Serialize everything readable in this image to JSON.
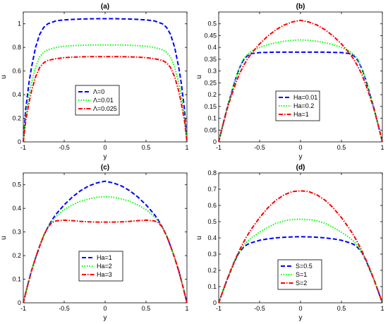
{
  "colors": {
    "blue": "#0000ff",
    "green": "#00ff00",
    "red": "#ff0000",
    "axis": "#000000"
  },
  "chart_data": [
    {
      "type": "line",
      "title": "(a)",
      "xlabel": "y",
      "ylabel": "u",
      "xlim": [
        -1,
        1
      ],
      "ylim": [
        0,
        1.1
      ],
      "xticks": [
        "-1",
        "-0.5",
        "0",
        "0.5",
        "1"
      ],
      "yticks": [
        "0",
        "0.2",
        "0.4",
        "0.6",
        "0.8",
        "1"
      ],
      "legend_position": "center",
      "series": [
        {
          "name": "Λ=0",
          "color": "blue",
          "dash": "dashed",
          "x": [
            -1,
            -0.97,
            -0.93,
            -0.9,
            -0.85,
            -0.8,
            -0.75,
            -0.7,
            -0.6,
            -0.5,
            -0.4,
            -0.3,
            -0.2,
            -0.1,
            0,
            0.1,
            0.2,
            0.3,
            0.4,
            0.5,
            0.6,
            0.7,
            0.75,
            0.8,
            0.85,
            0.9,
            0.93,
            0.97,
            1
          ],
          "y": [
            0,
            0.28,
            0.5,
            0.63,
            0.8,
            0.91,
            0.97,
            1.0,
            1.025,
            1.033,
            1.037,
            1.04,
            1.042,
            1.043,
            1.043,
            1.043,
            1.042,
            1.04,
            1.037,
            1.033,
            1.025,
            1.0,
            0.97,
            0.91,
            0.8,
            0.63,
            0.5,
            0.28,
            0
          ]
        },
        {
          "name": "Λ=0.01",
          "color": "green",
          "dash": "dotted",
          "x": [
            -1,
            -0.97,
            -0.93,
            -0.9,
            -0.85,
            -0.8,
            -0.75,
            -0.7,
            -0.6,
            -0.5,
            -0.4,
            -0.3,
            -0.2,
            -0.1,
            0,
            0.1,
            0.2,
            0.3,
            0.4,
            0.5,
            0.6,
            0.7,
            0.75,
            0.8,
            0.85,
            0.9,
            0.93,
            0.97,
            1
          ],
          "y": [
            0,
            0.22,
            0.4,
            0.5,
            0.63,
            0.72,
            0.76,
            0.78,
            0.8,
            0.81,
            0.815,
            0.818,
            0.82,
            0.82,
            0.82,
            0.82,
            0.82,
            0.818,
            0.815,
            0.81,
            0.8,
            0.78,
            0.76,
            0.72,
            0.63,
            0.5,
            0.4,
            0.22,
            0
          ]
        },
        {
          "name": "Λ=0.025",
          "color": "red",
          "dash": "dashdot",
          "x": [
            -1,
            -0.97,
            -0.93,
            -0.9,
            -0.85,
            -0.8,
            -0.75,
            -0.7,
            -0.6,
            -0.5,
            -0.4,
            -0.3,
            -0.2,
            -0.1,
            0,
            0.1,
            0.2,
            0.3,
            0.4,
            0.5,
            0.6,
            0.7,
            0.75,
            0.8,
            0.85,
            0.9,
            0.93,
            0.97,
            1
          ],
          "y": [
            0,
            0.18,
            0.33,
            0.43,
            0.55,
            0.63,
            0.67,
            0.69,
            0.705,
            0.713,
            0.718,
            0.72,
            0.722,
            0.722,
            0.722,
            0.722,
            0.722,
            0.72,
            0.718,
            0.713,
            0.705,
            0.69,
            0.67,
            0.63,
            0.55,
            0.43,
            0.33,
            0.18,
            0
          ]
        }
      ]
    },
    {
      "type": "line",
      "title": "(b)",
      "xlabel": "y",
      "ylabel": "u",
      "xlim": [
        -1,
        1
      ],
      "ylim": [
        0,
        0.55
      ],
      "xticks": [
        "-1",
        "-0.5",
        "0",
        "0.5",
        "1"
      ],
      "yticks": [
        "0",
        "0.05",
        "0.1",
        "0.15",
        "0.2",
        "0.25",
        "0.3",
        "0.35",
        "0.4",
        "0.45",
        "0.5"
      ],
      "legend_position": "bottom-center",
      "series": [
        {
          "name": "Ha=0.01",
          "color": "blue",
          "dash": "dashed",
          "x": [
            -1,
            -0.95,
            -0.9,
            -0.85,
            -0.8,
            -0.75,
            -0.7,
            -0.65,
            -0.6,
            -0.5,
            -0.4,
            -0.3,
            -0.2,
            -0.1,
            0,
            0.1,
            0.2,
            0.3,
            0.4,
            0.5,
            0.6,
            0.65,
            0.7,
            0.75,
            0.8,
            0.85,
            0.9,
            0.95,
            1
          ],
          "y": [
            0,
            0.07,
            0.14,
            0.2,
            0.26,
            0.31,
            0.345,
            0.365,
            0.374,
            0.378,
            0.379,
            0.38,
            0.38,
            0.38,
            0.38,
            0.38,
            0.38,
            0.38,
            0.379,
            0.378,
            0.374,
            0.365,
            0.345,
            0.31,
            0.26,
            0.2,
            0.14,
            0.07,
            0
          ]
        },
        {
          "name": "Ha=0.2",
          "color": "green",
          "dash": "dotted",
          "x": [
            -1,
            -0.95,
            -0.9,
            -0.85,
            -0.8,
            -0.75,
            -0.7,
            -0.65,
            -0.6,
            -0.5,
            -0.4,
            -0.3,
            -0.2,
            -0.1,
            0,
            0.1,
            0.2,
            0.3,
            0.4,
            0.5,
            0.6,
            0.65,
            0.7,
            0.75,
            0.8,
            0.85,
            0.9,
            0.95,
            1
          ],
          "y": [
            0,
            0.07,
            0.14,
            0.2,
            0.26,
            0.31,
            0.35,
            0.37,
            0.384,
            0.4,
            0.412,
            0.42,
            0.426,
            0.43,
            0.432,
            0.43,
            0.426,
            0.42,
            0.412,
            0.4,
            0.384,
            0.37,
            0.35,
            0.31,
            0.26,
            0.2,
            0.14,
            0.07,
            0
          ]
        },
        {
          "name": "Ha=1",
          "color": "red",
          "dash": "dashdot",
          "x": [
            -1,
            -0.95,
            -0.9,
            -0.85,
            -0.8,
            -0.75,
            -0.7,
            -0.65,
            -0.6,
            -0.5,
            -0.4,
            -0.3,
            -0.2,
            -0.1,
            0,
            0.1,
            0.2,
            0.3,
            0.4,
            0.5,
            0.6,
            0.65,
            0.7,
            0.75,
            0.8,
            0.85,
            0.9,
            0.95,
            1
          ],
          "y": [
            0,
            0.07,
            0.135,
            0.19,
            0.24,
            0.285,
            0.32,
            0.35,
            0.375,
            0.415,
            0.448,
            0.475,
            0.495,
            0.508,
            0.515,
            0.508,
            0.495,
            0.475,
            0.448,
            0.415,
            0.375,
            0.35,
            0.32,
            0.285,
            0.24,
            0.19,
            0.135,
            0.07,
            0
          ]
        }
      ]
    },
    {
      "type": "line",
      "title": "(c)",
      "xlabel": "y",
      "ylabel": "u",
      "xlim": [
        -1,
        1
      ],
      "ylim": [
        0,
        0.55
      ],
      "xticks": [
        "-1",
        "-0.5",
        "0",
        "0.5",
        "1"
      ],
      "yticks": [
        "0",
        "0.1",
        "0.2",
        "0.3",
        "0.4",
        "0.5"
      ],
      "legend_position": "bottom-center",
      "series": [
        {
          "name": "Ha=1",
          "color": "blue",
          "dash": "dashed",
          "x": [
            -1,
            -0.95,
            -0.9,
            -0.85,
            -0.8,
            -0.75,
            -0.7,
            -0.65,
            -0.6,
            -0.5,
            -0.4,
            -0.3,
            -0.2,
            -0.1,
            0,
            0.1,
            0.2,
            0.3,
            0.4,
            0.5,
            0.6,
            0.65,
            0.7,
            0.75,
            0.8,
            0.85,
            0.9,
            0.95,
            1
          ],
          "y": [
            0,
            0.07,
            0.135,
            0.19,
            0.24,
            0.285,
            0.32,
            0.35,
            0.375,
            0.415,
            0.448,
            0.475,
            0.495,
            0.508,
            0.515,
            0.508,
            0.495,
            0.475,
            0.448,
            0.415,
            0.375,
            0.35,
            0.32,
            0.285,
            0.24,
            0.19,
            0.135,
            0.07,
            0
          ]
        },
        {
          "name": "Ha=2",
          "color": "green",
          "dash": "dotted",
          "x": [
            -1,
            -0.95,
            -0.9,
            -0.85,
            -0.8,
            -0.75,
            -0.7,
            -0.65,
            -0.6,
            -0.5,
            -0.4,
            -0.3,
            -0.2,
            -0.1,
            0,
            0.1,
            0.2,
            0.3,
            0.4,
            0.5,
            0.6,
            0.65,
            0.7,
            0.75,
            0.8,
            0.85,
            0.9,
            0.95,
            1
          ],
          "y": [
            0,
            0.07,
            0.135,
            0.19,
            0.24,
            0.285,
            0.32,
            0.345,
            0.365,
            0.395,
            0.415,
            0.43,
            0.44,
            0.447,
            0.45,
            0.447,
            0.44,
            0.43,
            0.415,
            0.395,
            0.365,
            0.345,
            0.32,
            0.285,
            0.24,
            0.19,
            0.135,
            0.07,
            0
          ]
        },
        {
          "name": "Ha=3",
          "color": "red",
          "dash": "dashdot",
          "x": [
            -1,
            -0.95,
            -0.9,
            -0.85,
            -0.8,
            -0.75,
            -0.7,
            -0.65,
            -0.6,
            -0.5,
            -0.4,
            -0.3,
            -0.2,
            -0.1,
            0,
            0.1,
            0.2,
            0.3,
            0.4,
            0.5,
            0.6,
            0.65,
            0.7,
            0.75,
            0.8,
            0.85,
            0.9,
            0.95,
            1
          ],
          "y": [
            0,
            0.07,
            0.135,
            0.19,
            0.24,
            0.285,
            0.32,
            0.34,
            0.347,
            0.35,
            0.348,
            0.345,
            0.343,
            0.342,
            0.342,
            0.342,
            0.343,
            0.345,
            0.348,
            0.35,
            0.347,
            0.34,
            0.32,
            0.285,
            0.24,
            0.19,
            0.135,
            0.07,
            0
          ]
        }
      ]
    },
    {
      "type": "line",
      "title": "(d)",
      "xlabel": "y",
      "ylabel": "u",
      "xlim": [
        -1,
        1
      ],
      "ylim": [
        0,
        0.8
      ],
      "xticks": [
        "-1",
        "-0.5",
        "0",
        "0.5",
        "1"
      ],
      "yticks": [
        "0",
        "0.1",
        "0.2",
        "0.3",
        "0.4",
        "0.5",
        "0.6",
        "0.7",
        "0.8"
      ],
      "legend_position": "bottom-center",
      "series": [
        {
          "name": "S=0.5",
          "color": "blue",
          "dash": "dashed",
          "x": [
            -1,
            -0.95,
            -0.9,
            -0.85,
            -0.8,
            -0.75,
            -0.7,
            -0.65,
            -0.6,
            -0.5,
            -0.4,
            -0.3,
            -0.2,
            -0.1,
            0,
            0.1,
            0.2,
            0.3,
            0.4,
            0.5,
            0.6,
            0.65,
            0.7,
            0.75,
            0.8,
            0.85,
            0.9,
            0.95,
            1
          ],
          "y": [
            0,
            0.07,
            0.14,
            0.2,
            0.26,
            0.31,
            0.34,
            0.36,
            0.37,
            0.385,
            0.394,
            0.4,
            0.404,
            0.406,
            0.407,
            0.406,
            0.404,
            0.4,
            0.394,
            0.385,
            0.37,
            0.36,
            0.34,
            0.31,
            0.26,
            0.2,
            0.14,
            0.07,
            0
          ]
        },
        {
          "name": "S=1",
          "color": "green",
          "dash": "dotted",
          "x": [
            -1,
            -0.95,
            -0.9,
            -0.85,
            -0.8,
            -0.75,
            -0.7,
            -0.65,
            -0.6,
            -0.5,
            -0.4,
            -0.3,
            -0.2,
            -0.1,
            0,
            0.1,
            0.2,
            0.3,
            0.4,
            0.5,
            0.6,
            0.65,
            0.7,
            0.75,
            0.8,
            0.85,
            0.9,
            0.95,
            1
          ],
          "y": [
            0,
            0.07,
            0.14,
            0.2,
            0.26,
            0.31,
            0.35,
            0.38,
            0.4,
            0.435,
            0.465,
            0.49,
            0.505,
            0.513,
            0.515,
            0.513,
            0.505,
            0.49,
            0.465,
            0.435,
            0.4,
            0.38,
            0.35,
            0.31,
            0.26,
            0.2,
            0.14,
            0.07,
            0
          ]
        },
        {
          "name": "S=2",
          "color": "red",
          "dash": "dashdot",
          "x": [
            -1,
            -0.95,
            -0.9,
            -0.85,
            -0.8,
            -0.75,
            -0.7,
            -0.65,
            -0.6,
            -0.5,
            -0.4,
            -0.3,
            -0.2,
            -0.1,
            0,
            0.1,
            0.2,
            0.3,
            0.4,
            0.5,
            0.6,
            0.65,
            0.7,
            0.75,
            0.8,
            0.85,
            0.9,
            0.95,
            1
          ],
          "y": [
            0,
            0.07,
            0.14,
            0.205,
            0.265,
            0.32,
            0.37,
            0.415,
            0.455,
            0.525,
            0.585,
            0.632,
            0.665,
            0.685,
            0.69,
            0.685,
            0.665,
            0.632,
            0.585,
            0.525,
            0.455,
            0.415,
            0.37,
            0.32,
            0.265,
            0.205,
            0.14,
            0.07,
            0
          ]
        }
      ]
    }
  ]
}
